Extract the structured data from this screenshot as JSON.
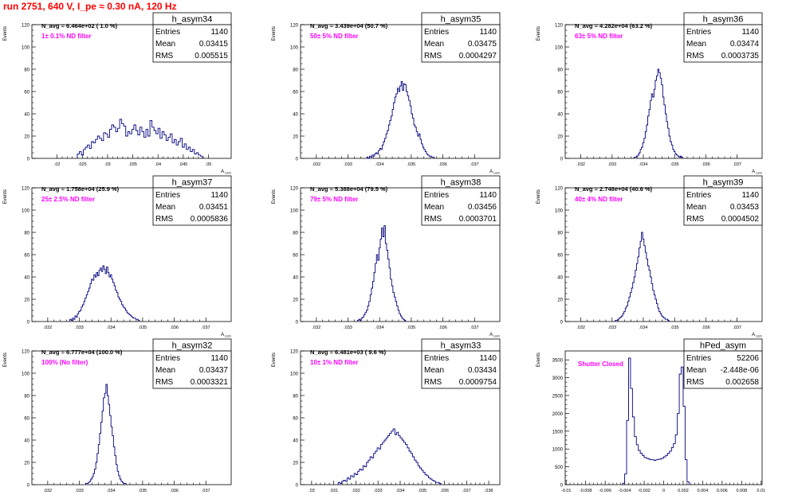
{
  "page": {
    "title": "run 2751,   640 V, I_pe ≈ 0.30 nA, 120 Hz"
  },
  "colors": {
    "histogram": "#00007f",
    "annotation": "#ff00ff",
    "title": "#ff0000",
    "axis": "#000000"
  },
  "chart_data": [
    {
      "type": "histogram",
      "name": "h_asym34",
      "ylabel": "Events",
      "xlabel": "A_LED",
      "yticks": [
        0,
        20,
        40,
        60,
        80,
        100,
        120
      ],
      "ylim": [
        0,
        120
      ],
      "xticks": [
        0.02,
        0.025,
        0.03,
        0.035,
        0.04,
        0.045,
        0.05
      ],
      "xlim": [
        0.015,
        0.0545
      ],
      "stats": {
        "entries": "1140",
        "mean": "0.03415",
        "rms": "0.005515"
      },
      "navg": "N_avg = 6.464e+02 ( 1.0 %)",
      "filter": "1± 0.1% ND filter",
      "x_start": 0.024,
      "bin_width": 0.0004,
      "counts": [
        4,
        6,
        3,
        8,
        10,
        12,
        9,
        15,
        14,
        17,
        20,
        18,
        16,
        23,
        22,
        19,
        26,
        30,
        28,
        24,
        27,
        35,
        31,
        29,
        20,
        24,
        22,
        26,
        30,
        25,
        21,
        28,
        24,
        19,
        26,
        20,
        34,
        28,
        25,
        22,
        27,
        18,
        24,
        21,
        16,
        19,
        22,
        14,
        17,
        12,
        15,
        18,
        10,
        13,
        8,
        10,
        6,
        8,
        4,
        5,
        3,
        2
      ]
    },
    {
      "type": "histogram",
      "name": "h_asym35",
      "ylabel": "Events",
      "xlabel": "A_LED",
      "yticks": [
        0,
        20,
        40,
        60,
        80,
        100,
        120
      ],
      "ylim": [
        0,
        120
      ],
      "xticks": [
        0.032,
        0.033,
        0.034,
        0.035,
        0.036,
        0.037
      ],
      "xlim": [
        0.0315,
        0.0378
      ],
      "stats": {
        "entries": "1140",
        "mean": "0.03475",
        "rms": "0.0004297"
      },
      "navg": "N_avg = 3.439e+04 (50.7 %)",
      "filter": "50± 5% ND filter",
      "x_start": 0.0336,
      "bin_width": 4e-05,
      "counts": [
        1,
        0,
        2,
        1,
        3,
        2,
        4,
        5,
        4,
        7,
        9,
        8,
        12,
        15,
        18,
        22,
        25,
        30,
        34,
        38,
        44,
        50,
        55,
        58,
        63,
        60,
        65,
        69,
        61,
        67,
        66,
        60,
        56,
        52,
        47,
        40,
        36,
        30,
        28,
        24,
        20,
        22,
        17,
        13,
        10,
        8,
        6,
        4,
        3,
        2,
        2,
        1,
        1
      ]
    },
    {
      "type": "histogram",
      "name": "h_asym36",
      "ylabel": "Events",
      "xlabel": "A_LED",
      "yticks": [
        0,
        20,
        40,
        60,
        80,
        100,
        120
      ],
      "ylim": [
        0,
        120
      ],
      "xticks": [
        0.032,
        0.033,
        0.034,
        0.035,
        0.036,
        0.037
      ],
      "xlim": [
        0.0315,
        0.0378
      ],
      "stats": {
        "entries": "1140",
        "mean": "0.03474",
        "rms": "0.0003735"
      },
      "navg": "N_avg = 4.282e+04 (63.2 %)",
      "filter": "63± 5% ND filter",
      "x_start": 0.0337,
      "bin_width": 4e-05,
      "counts": [
        1,
        1,
        2,
        3,
        5,
        8,
        10,
        14,
        18,
        24,
        30,
        38,
        44,
        52,
        58,
        55,
        62,
        70,
        74,
        80,
        77,
        72,
        66,
        55,
        48,
        40,
        33,
        27,
        20,
        15,
        12,
        8,
        6,
        4,
        3,
        2,
        1,
        2,
        1
      ]
    },
    {
      "type": "histogram",
      "name": "h_asym37",
      "ylabel": "Events",
      "xlabel": "A_LED",
      "yticks": [
        0,
        20,
        40,
        60,
        80,
        100,
        120
      ],
      "ylim": [
        0,
        120
      ],
      "xticks": [
        0.032,
        0.033,
        0.034,
        0.035,
        0.036,
        0.037
      ],
      "xlim": [
        0.0315,
        0.0378
      ],
      "stats": {
        "entries": "1140",
        "mean": "0.03451",
        "rms": "0.0005836"
      },
      "navg": "N_avg = 1.758e+04 (25.9 %)",
      "filter": "25± 2.5% ND filter",
      "x_start": 0.0327,
      "bin_width": 4e-05,
      "counts": [
        2,
        1,
        3,
        2,
        5,
        4,
        7,
        9,
        10,
        13,
        15,
        18,
        21,
        24,
        27,
        30,
        34,
        38,
        37,
        42,
        40,
        44,
        41,
        46,
        48,
        45,
        50,
        47,
        43,
        49,
        44,
        40,
        42,
        38,
        35,
        32,
        28,
        26,
        22,
        20,
        18,
        15,
        13,
        12,
        10,
        8,
        7,
        6,
        5,
        4,
        3,
        3,
        2,
        2,
        1
      ]
    },
    {
      "type": "histogram",
      "name": "h_asym38",
      "ylabel": "Events",
      "xlabel": "A_LED",
      "yticks": [
        0,
        20,
        40,
        60,
        80,
        100,
        120
      ],
      "ylim": [
        0,
        120
      ],
      "xticks": [
        0.032,
        0.033,
        0.034,
        0.035,
        0.036,
        0.037
      ],
      "xlim": [
        0.0315,
        0.0378
      ],
      "stats": {
        "entries": "1140",
        "mean": "0.03456",
        "rms": "0.0003701"
      },
      "navg": "N_avg = 5.388e+04 (79.5 %)",
      "filter": "79± 5% ND filter",
      "x_start": 0.0333,
      "bin_width": 4e-05,
      "counts": [
        1,
        2,
        1,
        3,
        4,
        6,
        8,
        10,
        14,
        18,
        24,
        30,
        36,
        44,
        52,
        60,
        55,
        66,
        74,
        84,
        76,
        86,
        70,
        64,
        56,
        48,
        38,
        32,
        26,
        22,
        18,
        14,
        10,
        7,
        5,
        3,
        2,
        1
      ]
    },
    {
      "type": "histogram",
      "name": "h_asym39",
      "ylabel": "Events",
      "xlabel": "A_LED",
      "yticks": [
        0,
        20,
        40,
        60,
        80,
        100,
        120
      ],
      "ylim": [
        0,
        120
      ],
      "xticks": [
        0.032,
        0.033,
        0.034,
        0.035,
        0.036,
        0.037
      ],
      "xlim": [
        0.0315,
        0.0378
      ],
      "stats": {
        "entries": "1140",
        "mean": "0.03453",
        "rms": "0.0004502"
      },
      "navg": "N_avg = 2.748e+04 (40.6 %)",
      "filter": "40± 4% ND filter",
      "x_start": 0.0331,
      "bin_width": 4e-05,
      "counts": [
        1,
        1,
        2,
        3,
        4,
        5,
        7,
        9,
        12,
        14,
        18,
        22,
        26,
        30,
        35,
        40,
        46,
        52,
        58,
        66,
        72,
        80,
        74,
        68,
        62,
        56,
        50,
        46,
        40,
        34,
        28,
        24,
        20,
        16,
        12,
        9,
        7,
        5,
        4,
        3,
        2,
        2,
        1
      ]
    },
    {
      "type": "histogram",
      "name": "h_asym32",
      "ylabel": "Events",
      "xlabel": "A_LED",
      "yticks": [
        0,
        20,
        40,
        60,
        80,
        100,
        120
      ],
      "ylim": [
        0,
        120
      ],
      "xticks": [
        0.032,
        0.033,
        0.034,
        0.035,
        0.036,
        0.037
      ],
      "xlim": [
        0.0315,
        0.0378
      ],
      "stats": {
        "entries": "1140",
        "mean": "0.03437",
        "rms": "0.0003321"
      },
      "navg": "N_avg = 6.777e+04 (100.0 %)",
      "filter": "100% (No filter)",
      "x_start": 0.0332,
      "bin_width": 4e-05,
      "counts": [
        1,
        1,
        2,
        3,
        5,
        7,
        10,
        14,
        20,
        28,
        36,
        46,
        56,
        66,
        78,
        82,
        90,
        80,
        72,
        62,
        52,
        44,
        34,
        26,
        18,
        12,
        8,
        5,
        3,
        2,
        1,
        1
      ]
    },
    {
      "type": "histogram",
      "name": "h_asym33",
      "ylabel": "Events",
      "xlabel": "A_LED",
      "yticks": [
        0,
        20,
        40,
        60,
        80,
        100,
        120
      ],
      "ylim": [
        0,
        120
      ],
      "xticks": [
        0.03,
        0.031,
        0.032,
        0.033,
        0.034,
        0.035,
        0.036,
        0.037,
        0.038
      ],
      "xlim": [
        0.0295,
        0.0385
      ],
      "stats": {
        "entries": "1140",
        "mean": "0.03434",
        "rms": "0.0009754"
      },
      "navg": "N_avg = 6.481e+03 ( 9.6 %)",
      "filter": "10± 1% ND filter",
      "x_start": 0.0312,
      "bin_width": 8e-05,
      "counts": [
        2,
        1,
        3,
        4,
        3,
        6,
        5,
        8,
        7,
        10,
        9,
        12,
        14,
        13,
        17,
        16,
        20,
        22,
        25,
        24,
        28,
        30,
        33,
        32,
        36,
        38,
        40,
        42,
        44,
        46,
        48,
        50,
        45,
        47,
        44,
        42,
        40,
        38,
        36,
        33,
        30,
        28,
        25,
        22,
        20,
        17,
        15,
        13,
        11,
        9,
        8,
        6,
        5,
        4,
        3,
        2,
        2,
        1
      ]
    },
    {
      "type": "histogram",
      "name": "hPed_asym",
      "ylabel": "Events",
      "xlabel": "A_LED",
      "yticks": [
        0,
        500,
        1000,
        1500,
        2000,
        2500,
        3000,
        3500
      ],
      "ylim": [
        0,
        3750
      ],
      "xticks": [
        -0.01,
        -0.008,
        -0.006,
        -0.004,
        -0.002,
        0,
        0.002,
        0.004,
        0.006,
        0.008,
        0.01
      ],
      "xticklabels": [
        "-0.01",
        "-0.008",
        "-0.006",
        "-0.004",
        "-0.002",
        "0",
        "0.002",
        "0.004",
        "0.006",
        "0.008",
        "0.01"
      ],
      "xlim": [
        -0.0101,
        0.0101
      ],
      "stats": {
        "entries": "52206",
        "mean": "-2.448e-06",
        "rms": "0.002658"
      },
      "navg": "",
      "filter": "Shutter Closed",
      "x_start": -0.0042,
      "bin_width": 0.0002,
      "counts": [
        40,
        300,
        1800,
        3550,
        2700,
        1900,
        1350,
        1120,
        960,
        880,
        820,
        760,
        740,
        720,
        700,
        700,
        680,
        700,
        710,
        720,
        740,
        780,
        820,
        880,
        940,
        1040,
        1150,
        1400,
        2000,
        3100,
        3300,
        2200,
        700,
        80
      ]
    }
  ]
}
